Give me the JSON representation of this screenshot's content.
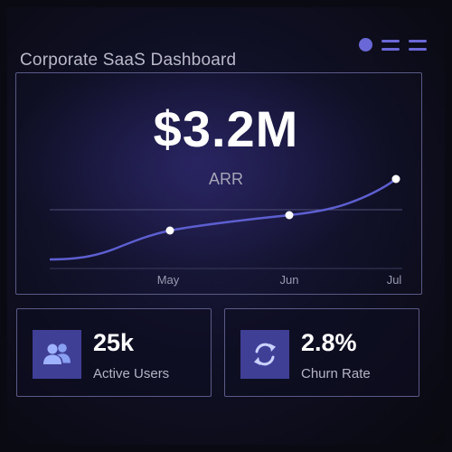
{
  "header": {
    "title": "Corporate SaaS Dashboard",
    "icons": [
      "circle-dot-icon",
      "menu-bars-icon",
      "menu-bars-icon"
    ],
    "accent_color": "#6a68d6"
  },
  "arr": {
    "value": "$3.2M",
    "label": "ARR"
  },
  "chart_data": {
    "type": "line",
    "x_tick_labels": [
      "May",
      "Jun",
      "Jul"
    ],
    "series_color": "#5d5fd0",
    "highlighted_points": [
      "May",
      "Jun",
      "Jul"
    ]
  },
  "stats": [
    {
      "value": "25k",
      "label": "Active Users",
      "icon": "users-icon"
    },
    {
      "value": "2.8%",
      "label": "Churn Rate",
      "icon": "refresh-icon"
    }
  ]
}
